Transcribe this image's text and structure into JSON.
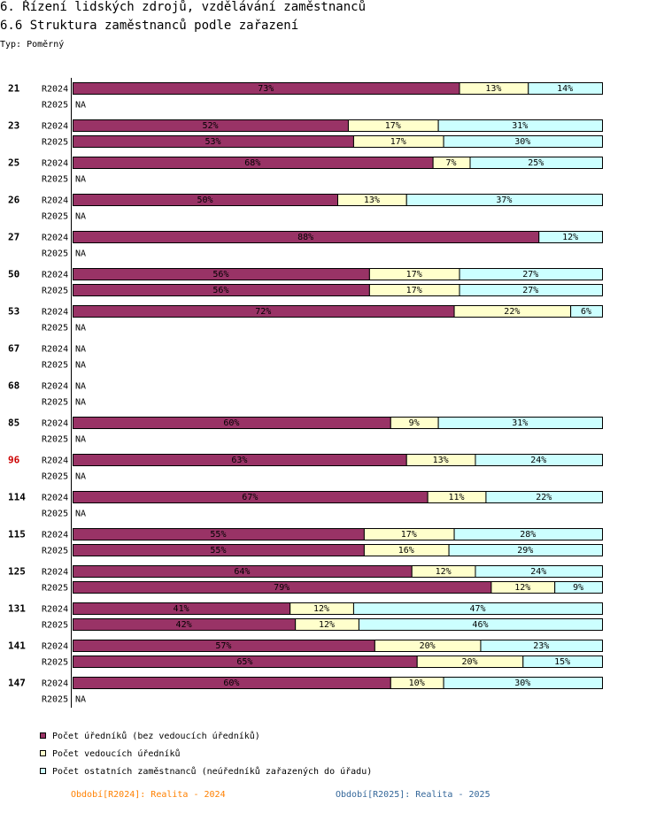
{
  "header": {
    "title": "6. Řízení lidských zdrojů, vzdělávání zaměstnanců",
    "subtitle": "6.6 Struktura zaměstnanců podle zařazení",
    "type_label": "Typ: Poměrný"
  },
  "colors": {
    "s1": "#993366",
    "s2": "#ffffcc",
    "s3": "#ccffff",
    "highlight": "#cc0000",
    "period2024": "#ff8000",
    "period2025": "#336699"
  },
  "chart_data": {
    "type": "bar",
    "orientation": "horizontal",
    "stacked": true,
    "unit": "%",
    "xlim": [
      0,
      100
    ],
    "series": [
      {
        "name": "Počet úředníků (bez vedoucích úředníků)"
      },
      {
        "name": "Počet vedoucích úředníků"
      },
      {
        "name": "Počet ostatních zaměstnanců (neúředníků zařazených do úřadu)"
      }
    ],
    "groups": [
      {
        "id": "21",
        "highlight": false,
        "rows": [
          {
            "period": "R2024",
            "values": [
              73,
              13,
              14
            ]
          },
          {
            "period": "R2025",
            "values": null
          }
        ]
      },
      {
        "id": "23",
        "highlight": false,
        "rows": [
          {
            "period": "R2024",
            "values": [
              52,
              17,
              31
            ]
          },
          {
            "period": "R2025",
            "values": [
              53,
              17,
              30
            ]
          }
        ]
      },
      {
        "id": "25",
        "highlight": false,
        "rows": [
          {
            "period": "R2024",
            "values": [
              68,
              7,
              25
            ]
          },
          {
            "period": "R2025",
            "values": null
          }
        ]
      },
      {
        "id": "26",
        "highlight": false,
        "rows": [
          {
            "period": "R2024",
            "values": [
              50,
              13,
              37
            ]
          },
          {
            "period": "R2025",
            "values": null
          }
        ]
      },
      {
        "id": "27",
        "highlight": false,
        "rows": [
          {
            "period": "R2024",
            "values": [
              88,
              0,
              12
            ]
          },
          {
            "period": "R2025",
            "values": null
          }
        ]
      },
      {
        "id": "50",
        "highlight": false,
        "rows": [
          {
            "period": "R2024",
            "values": [
              56,
              17,
              27
            ]
          },
          {
            "period": "R2025",
            "values": [
              56,
              17,
              27
            ]
          }
        ]
      },
      {
        "id": "53",
        "highlight": false,
        "rows": [
          {
            "period": "R2024",
            "values": [
              72,
              22,
              6
            ]
          },
          {
            "period": "R2025",
            "values": null
          }
        ]
      },
      {
        "id": "67",
        "highlight": false,
        "rows": [
          {
            "period": "R2024",
            "values": null
          },
          {
            "period": "R2025",
            "values": null
          }
        ]
      },
      {
        "id": "68",
        "highlight": false,
        "rows": [
          {
            "period": "R2024",
            "values": null
          },
          {
            "period": "R2025",
            "values": null
          }
        ]
      },
      {
        "id": "85",
        "highlight": false,
        "rows": [
          {
            "period": "R2024",
            "values": [
              60,
              9,
              31
            ]
          },
          {
            "period": "R2025",
            "values": null
          }
        ]
      },
      {
        "id": "96",
        "highlight": true,
        "rows": [
          {
            "period": "R2024",
            "values": [
              63,
              13,
              24
            ]
          },
          {
            "period": "R2025",
            "values": null
          }
        ]
      },
      {
        "id": "114",
        "highlight": false,
        "rows": [
          {
            "period": "R2024",
            "values": [
              67,
              11,
              22
            ]
          },
          {
            "period": "R2025",
            "values": null
          }
        ]
      },
      {
        "id": "115",
        "highlight": false,
        "rows": [
          {
            "period": "R2024",
            "values": [
              55,
              17,
              28
            ]
          },
          {
            "period": "R2025",
            "values": [
              55,
              16,
              29
            ]
          }
        ]
      },
      {
        "id": "125",
        "highlight": false,
        "rows": [
          {
            "period": "R2024",
            "values": [
              64,
              12,
              24
            ]
          },
          {
            "period": "R2025",
            "values": [
              79,
              12,
              9
            ]
          }
        ]
      },
      {
        "id": "131",
        "highlight": false,
        "rows": [
          {
            "period": "R2024",
            "values": [
              41,
              12,
              47
            ]
          },
          {
            "period": "R2025",
            "values": [
              42,
              12,
              46
            ]
          }
        ]
      },
      {
        "id": "141",
        "highlight": false,
        "rows": [
          {
            "period": "R2024",
            "values": [
              57,
              20,
              23
            ]
          },
          {
            "period": "R2025",
            "values": [
              65,
              20,
              15
            ]
          }
        ]
      },
      {
        "id": "147",
        "highlight": false,
        "rows": [
          {
            "period": "R2024",
            "values": [
              60,
              10,
              30
            ]
          },
          {
            "period": "R2025",
            "values": null
          }
        ]
      }
    ],
    "na_label": "NA",
    "periods": [
      {
        "text": "Období[R2024]: Realita - 2024"
      },
      {
        "text": "Období[R2025]: Realita - 2025"
      }
    ]
  }
}
